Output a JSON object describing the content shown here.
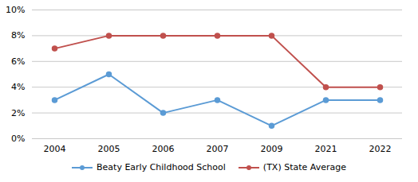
{
  "chart_data": {
    "type": "line",
    "categories": [
      "2004",
      "2005",
      "2006",
      "2007",
      "2009",
      "2021",
      "2022"
    ],
    "series": [
      {
        "name": "Beaty Early Childhood School",
        "color": "#5b9bd5",
        "values": [
          3,
          5,
          2,
          3,
          1,
          3,
          3
        ],
        "marker": "circle"
      },
      {
        "name": "(TX) State Average",
        "color": "#c0504d",
        "values": [
          7,
          8,
          8,
          8,
          8,
          4,
          4
        ],
        "marker": "circle"
      }
    ],
    "ylim": [
      0,
      10
    ],
    "yticks": [
      {
        "value": 0,
        "label": "0%"
      },
      {
        "value": 2,
        "label": "2%"
      },
      {
        "value": 4,
        "label": "4%"
      },
      {
        "value": 6,
        "label": "6%"
      },
      {
        "value": 8,
        "label": "8%"
      },
      {
        "value": 10,
        "label": "10%"
      }
    ],
    "grid": true,
    "legend": "bottom"
  }
}
